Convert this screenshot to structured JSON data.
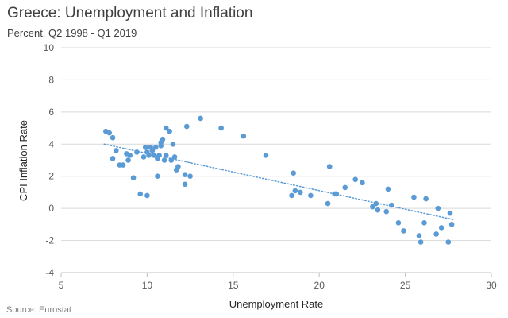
{
  "title": "Greece: Unemployment and Inflation",
  "subtitle": "Percent, Q2 1998 - Q1 2019",
  "source": "Source: Eurostat",
  "colors": {
    "points": "#5b9bd5",
    "trendline": "#5b9bd5",
    "grid": "#d9d9d9",
    "axis": "#bfbfbf"
  },
  "chart_data": {
    "type": "scatter",
    "xlabel": "Unemployment Rate",
    "ylabel": "CPI Inflation Rate",
    "xlim": [
      5,
      30
    ],
    "ylim": [
      -4,
      10
    ],
    "xticks": [
      5,
      10,
      15,
      20,
      25,
      30
    ],
    "yticks": [
      -4,
      -2,
      0,
      2,
      4,
      6,
      8,
      10
    ],
    "grid": {
      "horizontal": true,
      "vertical": false
    },
    "legend": "none",
    "trendline": {
      "type": "linear",
      "style": "dotted",
      "x": [
        7.5,
        27.8
      ],
      "y": [
        4.0,
        -0.7
      ]
    },
    "points": [
      [
        7.6,
        4.8
      ],
      [
        7.8,
        4.7
      ],
      [
        8.0,
        4.4
      ],
      [
        8.0,
        3.1
      ],
      [
        8.2,
        3.6
      ],
      [
        8.4,
        2.7
      ],
      [
        8.6,
        2.7
      ],
      [
        8.8,
        3.4
      ],
      [
        8.9,
        3.0
      ],
      [
        9.0,
        3.3
      ],
      [
        9.2,
        1.9
      ],
      [
        9.4,
        3.5
      ],
      [
        9.6,
        0.9
      ],
      [
        9.8,
        3.2
      ],
      [
        9.9,
        3.8
      ],
      [
        10.0,
        0.8
      ],
      [
        10.0,
        3.5
      ],
      [
        10.1,
        3.3
      ],
      [
        10.2,
        3.8
      ],
      [
        10.3,
        3.6
      ],
      [
        10.4,
        3.3
      ],
      [
        10.5,
        3.8
      ],
      [
        10.6,
        3.1
      ],
      [
        10.6,
        2.0
      ],
      [
        10.7,
        3.3
      ],
      [
        10.8,
        3.9
      ],
      [
        10.8,
        4.1
      ],
      [
        10.9,
        4.3
      ],
      [
        11.0,
        3.0
      ],
      [
        11.1,
        3.3
      ],
      [
        11.1,
        5.0
      ],
      [
        11.3,
        4.8
      ],
      [
        11.4,
        3.0
      ],
      [
        11.5,
        4.0
      ],
      [
        11.6,
        3.2
      ],
      [
        11.7,
        2.4
      ],
      [
        11.8,
        2.6
      ],
      [
        12.2,
        2.1
      ],
      [
        12.2,
        1.5
      ],
      [
        12.3,
        5.1
      ],
      [
        12.5,
        2.0
      ],
      [
        13.1,
        5.6
      ],
      [
        14.3,
        5.0
      ],
      [
        15.6,
        4.5
      ],
      [
        16.9,
        3.3
      ],
      [
        18.4,
        0.8
      ],
      [
        18.5,
        2.2
      ],
      [
        18.6,
        1.1
      ],
      [
        18.9,
        1.0
      ],
      [
        19.5,
        0.8
      ],
      [
        20.5,
        0.3
      ],
      [
        20.6,
        2.6
      ],
      [
        20.9,
        0.9
      ],
      [
        21.0,
        0.9
      ],
      [
        21.5,
        1.3
      ],
      [
        22.1,
        1.8
      ],
      [
        22.5,
        1.6
      ],
      [
        23.1,
        0.1
      ],
      [
        23.3,
        0.3
      ],
      [
        23.4,
        -0.1
      ],
      [
        23.9,
        -0.2
      ],
      [
        24.0,
        1.2
      ],
      [
        24.2,
        0.2
      ],
      [
        24.6,
        -0.9
      ],
      [
        24.9,
        -1.4
      ],
      [
        25.5,
        0.7
      ],
      [
        25.8,
        -1.7
      ],
      [
        25.9,
        -2.1
      ],
      [
        26.1,
        -0.9
      ],
      [
        26.2,
        0.6
      ],
      [
        26.8,
        -1.6
      ],
      [
        26.9,
        0.0
      ],
      [
        27.1,
        -1.2
      ],
      [
        27.5,
        -2.1
      ],
      [
        27.6,
        -0.3
      ],
      [
        27.7,
        -1.0
      ]
    ]
  }
}
